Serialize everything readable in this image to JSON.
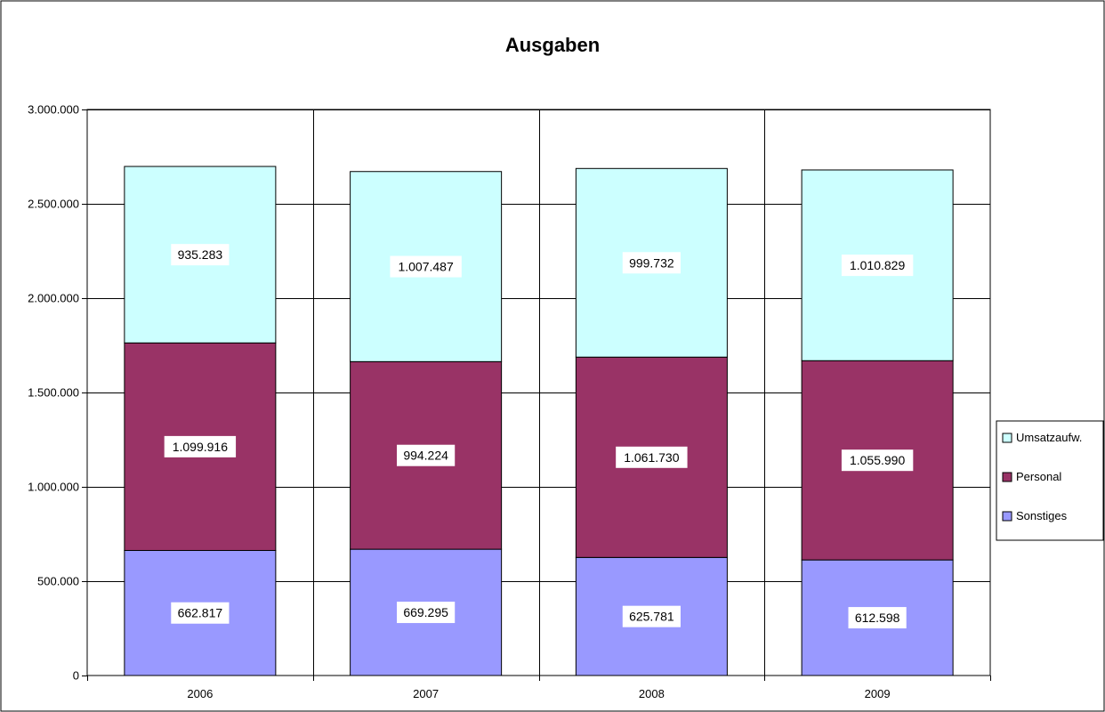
{
  "chart_data": {
    "type": "bar",
    "stacked": true,
    "title": "Ausgaben",
    "categories": [
      "2006",
      "2007",
      "2008",
      "2009"
    ],
    "series": [
      {
        "name": "Sonstiges",
        "values": [
          662817,
          669295,
          625781,
          612598
        ],
        "labels": [
          "662.817",
          "669.295",
          "625.781",
          "612.598"
        ],
        "color": "#9999ff"
      },
      {
        "name": "Personal",
        "values": [
          1099916,
          994224,
          1061730,
          1055990
        ],
        "labels": [
          "1.099.916",
          "994.224",
          "1.061.730",
          "1.055.990"
        ],
        "color": "#993366"
      },
      {
        "name": "Umsatzaufw.",
        "values": [
          935283,
          1007487,
          999732,
          1010829
        ],
        "labels": [
          "935.283",
          "1.007.487",
          "999.732",
          "1.010.829"
        ],
        "color": "#ccffff"
      }
    ],
    "ylim": [
      0,
      3000000
    ],
    "yticks": [
      0,
      500000,
      1000000,
      1500000,
      2000000,
      2500000,
      3000000
    ],
    "ytick_labels": [
      "0",
      "500.000",
      "1.000.000",
      "1.500.000",
      "2.000.000",
      "2.500.000",
      "3.000.000"
    ],
    "grid": true,
    "legend": {
      "position": "right",
      "entries": [
        "Umsatzaufw.",
        "Personal",
        "Sonstiges"
      ]
    }
  }
}
